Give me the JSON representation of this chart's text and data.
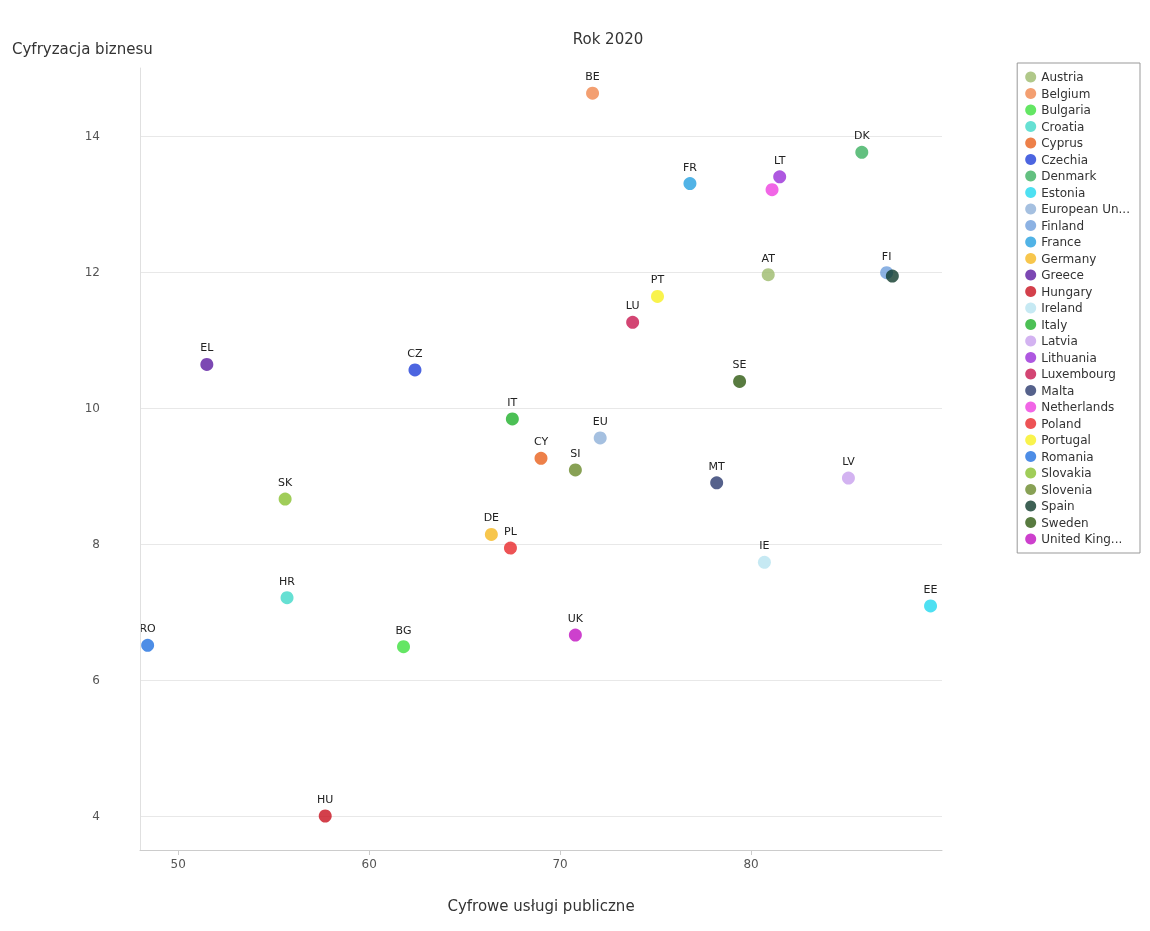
{
  "chart_data": {
    "type": "scatter",
    "title": "Rok 2020",
    "xlabel": "Cyfrowe usługi publiczne",
    "ylabel": "Cyfryzacja biznesu",
    "xlim": [
      48,
      90
    ],
    "xticks": [
      50,
      60,
      70,
      80
    ],
    "ylim": [
      3.5,
      15
    ],
    "yticks": [
      4,
      6,
      8,
      10,
      12,
      14
    ],
    "grid": "y",
    "legend": "right",
    "marker": "circle",
    "series": [
      {
        "name": "Austria",
        "color": "#9cba6c",
        "x": [
          80.9
        ],
        "values": [
          11.96
        ]
      },
      {
        "name": "Belgium",
        "color": "#f0874e",
        "x": [
          71.7
        ],
        "values": [
          14.63
        ]
      },
      {
        "name": "Bulgaria",
        "color": "#3de03d",
        "x": [
          61.8
        ],
        "values": [
          6.49
        ]
      },
      {
        "name": "Croatia",
        "color": "#40d8c8",
        "x": [
          55.7
        ],
        "values": [
          7.21
        ]
      },
      {
        "name": "Cyprus",
        "color": "#e8601c",
        "x": [
          69.0
        ],
        "values": [
          9.26
        ]
      },
      {
        "name": "Czechia",
        "color": "#1f3fd8",
        "x": [
          62.4
        ],
        "values": [
          10.56
        ]
      },
      {
        "name": "Denmark",
        "color": "#3cb060",
        "x": [
          85.8
        ],
        "values": [
          13.76
        ]
      },
      {
        "name": "Estonia",
        "color": "#22d8ef",
        "x": [
          89.4
        ],
        "values": [
          7.09
        ]
      },
      {
        "name": "European Un...",
        "color": "#8fb0d8",
        "x": [
          72.1
        ],
        "values": [
          9.56
        ]
      },
      {
        "name": "Finland",
        "color": "#6f9fdc",
        "x": [
          87.1
        ],
        "values": [
          11.99
        ]
      },
      {
        "name": "France",
        "color": "#26a0e0",
        "x": [
          76.8
        ],
        "values": [
          13.3
        ]
      },
      {
        "name": "Germany",
        "color": "#f5b820",
        "x": [
          66.4
        ],
        "values": [
          8.14
        ]
      },
      {
        "name": "Greece",
        "color": "#5b1aa0",
        "x": [
          51.5
        ],
        "values": [
          10.64
        ]
      },
      {
        "name": "Hungary",
        "color": "#c8101e",
        "x": [
          57.7
        ],
        "values": [
          4.0
        ]
      },
      {
        "name": "Ireland",
        "color": "#b8e4f0",
        "x": [
          80.7
        ],
        "values": [
          7.73
        ]
      },
      {
        "name": "Italy",
        "color": "#1fb02a",
        "x": [
          67.5
        ],
        "values": [
          9.84
        ]
      },
      {
        "name": "Latvia",
        "color": "#c8a0ee",
        "x": [
          85.1
        ],
        "values": [
          8.97
        ]
      },
      {
        "name": "Lithuania",
        "color": "#9a2ed8",
        "x": [
          81.5
        ],
        "values": [
          13.4
        ]
      },
      {
        "name": "Luxembourg",
        "color": "#c81650",
        "x": [
          73.8
        ],
        "values": [
          11.26
        ]
      },
      {
        "name": "Malta",
        "color": "#2a3a6e",
        "x": [
          78.2
        ],
        "values": [
          8.9
        ]
      },
      {
        "name": "Netherlands",
        "color": "#ee40e0",
        "x": [
          81.1
        ],
        "values": [
          13.21
        ]
      },
      {
        "name": "Poland",
        "color": "#e8282a",
        "x": [
          67.4
        ],
        "values": [
          7.94
        ]
      },
      {
        "name": "Portugal",
        "color": "#f8f020",
        "x": [
          75.1
        ],
        "values": [
          11.64
        ]
      },
      {
        "name": "Romania",
        "color": "#2070e0",
        "x": [
          48.4
        ],
        "values": [
          6.51
        ]
      },
      {
        "name": "Slovakia",
        "color": "#88c030",
        "x": [
          55.6
        ],
        "values": [
          8.66
        ]
      },
      {
        "name": "Slovenia",
        "color": "#6a8a2a",
        "x": [
          70.8
        ],
        "values": [
          9.09
        ]
      },
      {
        "name": "Spain",
        "color": "#0e3a2a",
        "x": [
          87.4
        ],
        "values": [
          11.94
        ]
      },
      {
        "name": "Sweden",
        "color": "#2e5a10",
        "x": [
          79.4
        ],
        "values": [
          10.39
        ]
      },
      {
        "name": "United King...",
        "color": "#c010c0",
        "x": [
          70.8
        ],
        "values": [
          6.66
        ]
      }
    ],
    "annotations": [
      {
        "text": "AT",
        "x": 80.9,
        "y": 11.96
      },
      {
        "text": "BE",
        "x": 71.7,
        "y": 14.63
      },
      {
        "text": "BG",
        "x": 61.8,
        "y": 6.49
      },
      {
        "text": "HR",
        "x": 55.7,
        "y": 7.21
      },
      {
        "text": "CY",
        "x": 69.0,
        "y": 9.26
      },
      {
        "text": "CZ",
        "x": 62.4,
        "y": 10.56
      },
      {
        "text": "DK",
        "x": 85.8,
        "y": 13.76
      },
      {
        "text": "EE",
        "x": 89.4,
        "y": 7.09
      },
      {
        "text": "EU",
        "x": 72.1,
        "y": 9.56
      },
      {
        "text": "FI",
        "x": 87.1,
        "y": 11.99
      },
      {
        "text": "FR",
        "x": 76.8,
        "y": 13.3
      },
      {
        "text": "DE",
        "x": 66.4,
        "y": 8.14
      },
      {
        "text": "EL",
        "x": 51.5,
        "y": 10.64
      },
      {
        "text": "HU",
        "x": 57.7,
        "y": 4.0
      },
      {
        "text": "IE",
        "x": 80.7,
        "y": 7.73
      },
      {
        "text": "IT",
        "x": 67.5,
        "y": 9.84
      },
      {
        "text": "LV",
        "x": 85.1,
        "y": 8.97
      },
      {
        "text": "LT",
        "x": 81.5,
        "y": 13.4
      },
      {
        "text": "LU",
        "x": 73.8,
        "y": 11.26
      },
      {
        "text": "MT",
        "x": 78.2,
        "y": 8.9
      },
      {
        "text": "PL",
        "x": 67.4,
        "y": 7.94
      },
      {
        "text": "PT",
        "x": 75.1,
        "y": 11.64
      },
      {
        "text": "RO",
        "x": 48.4,
        "y": 6.51
      },
      {
        "text": "SK",
        "x": 55.6,
        "y": 8.66
      },
      {
        "text": "SI",
        "x": 70.8,
        "y": 9.09
      },
      {
        "text": "SE",
        "x": 79.4,
        "y": 10.39
      },
      {
        "text": "UK",
        "x": 70.8,
        "y": 6.66
      }
    ]
  }
}
